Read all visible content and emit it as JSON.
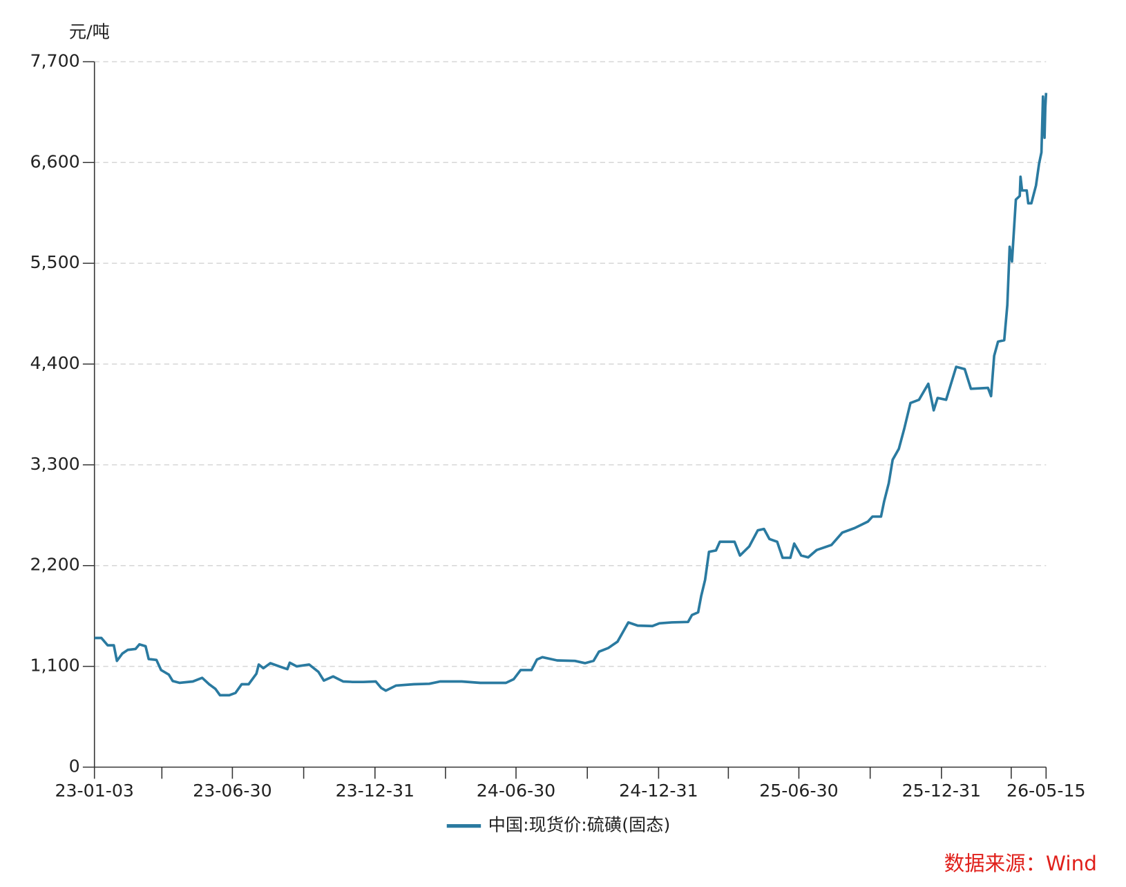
{
  "chart_data": {
    "type": "line",
    "y_unit": "元/吨",
    "source": "数据来源：Wind",
    "ylim": [
      0,
      7700
    ],
    "yticks": [
      0,
      {
        "value": 1100,
        "label": "1,100"
      },
      {
        "value": 2200,
        "label": "2,200"
      },
      {
        "value": 3300,
        "label": "3,300"
      },
      {
        "value": 4400,
        "label": "4,400"
      },
      {
        "value": 5500,
        "label": "5,500"
      },
      {
        "value": 6600,
        "label": "6,600"
      },
      {
        "value": 7700,
        "label": "7,700"
      }
    ],
    "xlim": [
      "23-01-03",
      "26-05-15"
    ],
    "xticks": [
      "23-01-03",
      {
        "value": "23-03-31",
        "label": null
      },
      "23-06-30",
      {
        "value": "23-09-30",
        "label": null
      },
      "23-12-31",
      {
        "value": "24-03-31",
        "label": null
      },
      "24-06-30",
      {
        "value": "24-09-30",
        "label": null
      },
      "24-12-31",
      {
        "value": "25-03-31",
        "label": null
      },
      "25-06-30",
      {
        "value": "25-09-30",
        "label": null
      },
      "25-12-31",
      {
        "value": "26-03-31",
        "label": null
      },
      "26-05-15"
    ],
    "grid": true,
    "legend": "bottom",
    "x": [
      "23-01-03",
      "23-01-12",
      "23-01-20",
      "23-01-28",
      "23-02-01",
      "23-02-08",
      "23-02-15",
      "23-02-25",
      "23-03-02",
      "23-03-10",
      "23-03-14",
      "23-03-24",
      "23-03-30",
      "23-04-09",
      "23-04-14",
      "23-04-23",
      "23-05-10",
      "23-05-22",
      "23-05-31",
      "23-06-08",
      "23-06-14",
      "23-06-26",
      "23-07-04",
      "23-07-12",
      "23-07-21",
      "23-07-31",
      "23-08-03",
      "23-08-09",
      "23-08-18",
      "23-08-31",
      "23-09-09",
      "23-09-12",
      "23-09-21",
      "23-10-07",
      "23-10-19",
      "23-10-26",
      "23-11-07",
      "23-11-20",
      "23-12-02",
      "23-12-16",
      "24-01-01",
      "24-01-08",
      "24-01-14",
      "24-01-27",
      "24-02-19",
      "24-03-10",
      "24-03-24",
      "24-04-21",
      "24-05-15",
      "24-06-17",
      "24-06-27",
      "24-07-06",
      "24-07-20",
      "24-07-27",
      "24-08-03",
      "24-08-22",
      "24-09-14",
      "24-09-27",
      "24-10-08",
      "24-10-15",
      "24-10-27",
      "24-11-08",
      "24-11-16",
      "24-11-22",
      "24-12-04",
      "24-12-23",
      "25-01-01",
      "25-01-17",
      "25-02-07",
      "25-02-12",
      "25-02-20",
      "25-02-24",
      "25-03-01",
      "25-03-06",
      "25-03-15",
      "25-03-20",
      "25-04-08",
      "25-04-15",
      "25-04-27",
      "25-05-08",
      "25-05-16",
      "25-05-23",
      "25-06-02",
      "25-06-09",
      "25-06-19",
      "25-06-24",
      "25-07-03",
      "25-07-12",
      "25-07-23",
      "25-08-11",
      "25-08-25",
      "25-09-10",
      "25-09-27",
      "25-10-03",
      "25-10-14",
      "25-10-18",
      "25-10-24",
      "25-10-29",
      "25-11-06",
      "25-11-13",
      "25-11-21",
      "25-12-02",
      "25-12-14",
      "25-12-21",
      "25-12-26",
      "26-01-06",
      "26-01-19",
      "26-01-30",
      "26-02-07",
      "26-03-01",
      "26-03-05",
      "26-03-09",
      "26-03-14",
      "26-03-22",
      "26-03-26",
      "26-03-29",
      "26-04-01",
      "26-04-06",
      "26-04-11",
      "26-04-12",
      "26-04-14",
      "26-04-20",
      "26-04-22",
      "26-04-26",
      "26-05-02",
      "26-05-06",
      "26-05-09",
      "26-05-11",
      "26-05-13",
      "26-05-14",
      "26-05-15"
    ],
    "series": [
      {
        "name": "中国:现货价:硫磺(固态)",
        "color": "#2a7aa0",
        "values": [
          1410,
          1410,
          1330,
          1330,
          1160,
          1240,
          1280,
          1290,
          1340,
          1320,
          1180,
          1170,
          1060,
          1010,
          940,
          920,
          935,
          975,
          905,
          855,
          785,
          785,
          810,
          905,
          905,
          1020,
          1120,
          1080,
          1135,
          1095,
          1070,
          1140,
          1100,
          1120,
          1040,
          945,
          990,
          935,
          930,
          930,
          935,
          865,
          835,
          890,
          905,
          910,
          935,
          935,
          920,
          920,
          960,
          1060,
          1060,
          1175,
          1200,
          1165,
          1160,
          1135,
          1160,
          1260,
          1300,
          1370,
          1490,
          1580,
          1545,
          1540,
          1570,
          1580,
          1585,
          1660,
          1690,
          1870,
          2045,
          2350,
          2365,
          2460,
          2460,
          2310,
          2410,
          2585,
          2600,
          2490,
          2460,
          2285,
          2285,
          2440,
          2310,
          2290,
          2370,
          2425,
          2560,
          2610,
          2680,
          2735,
          2735,
          2900,
          3100,
          3355,
          3475,
          3695,
          3975,
          4010,
          4185,
          3895,
          4030,
          4010,
          4370,
          4345,
          4130,
          4140,
          4050,
          4490,
          4645,
          4660,
          5045,
          5680,
          5520,
          6195,
          6235,
          6445,
          6295,
          6295,
          6155,
          6155,
          6350,
          6590,
          6710,
          7320,
          6870,
          7200,
          7360
        ]
      }
    ]
  }
}
